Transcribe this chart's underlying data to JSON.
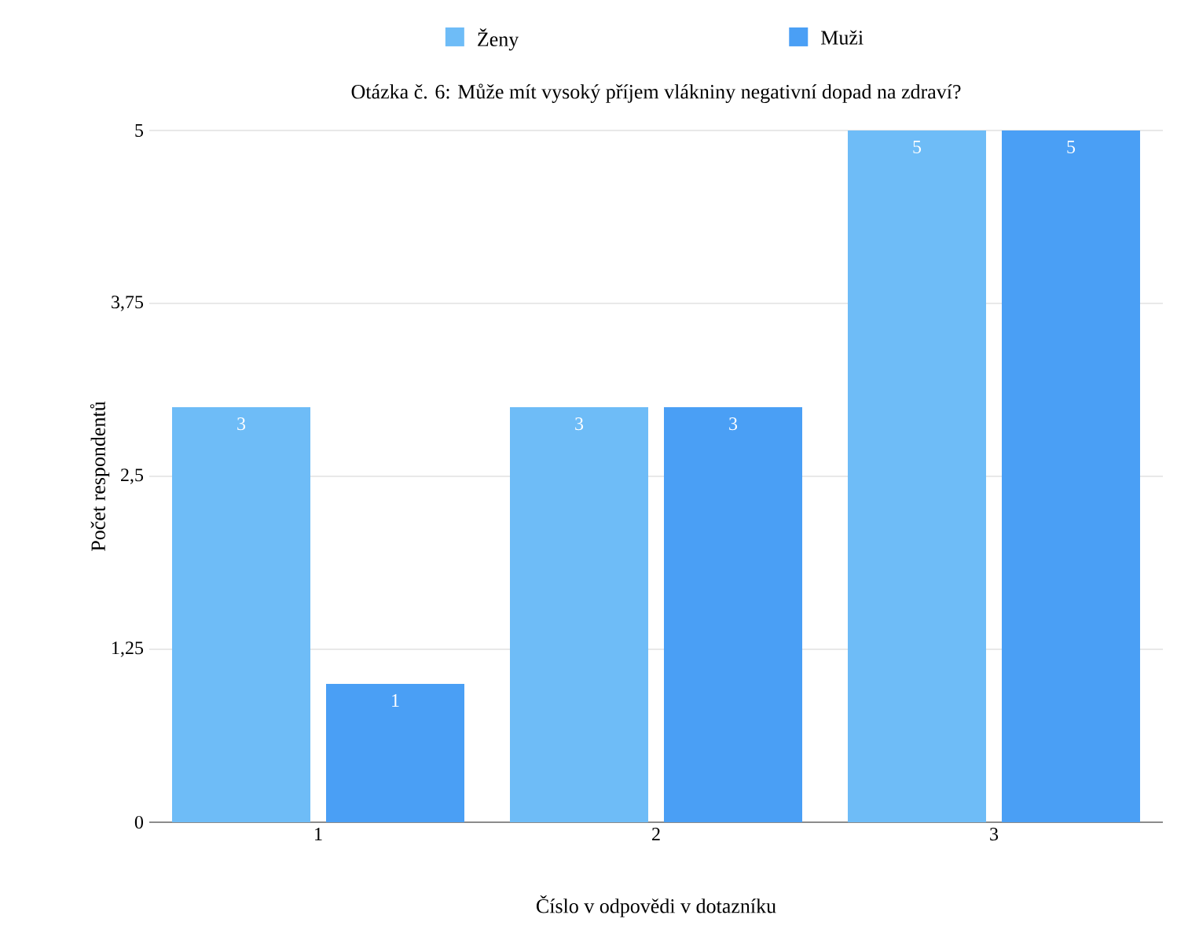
{
  "chart_data": {
    "type": "bar",
    "title": "Otázka č. 6: Může mít vysoký příjem vlákniny negativní dopad na zdraví?",
    "xlabel": "Číslo v odpovědi v dotazníku",
    "ylabel": "Počet respondentů",
    "categories": [
      "1",
      "2",
      "3"
    ],
    "series": [
      {
        "name": "Ženy",
        "color": "#6ebcf7",
        "values": [
          3,
          3,
          5
        ]
      },
      {
        "name": "Muži",
        "color": "#4a9ff5",
        "values": [
          1,
          3,
          5
        ]
      }
    ],
    "ylim": [
      0,
      5
    ],
    "yticks": [
      0,
      {
        "value": 1.25,
        "label": "1,25"
      },
      {
        "value": 2.5,
        "label": "2,5"
      },
      {
        "value": 3.75,
        "label": "3,75"
      },
      5
    ],
    "grid": "y",
    "legend": "top",
    "data_labels": true
  }
}
